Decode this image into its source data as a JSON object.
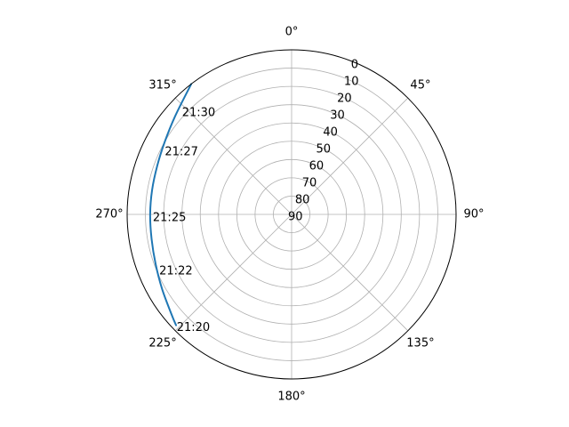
{
  "chart_data": {
    "type": "polar-line",
    "title": "",
    "theta_zero_location": "N",
    "theta_direction": "clockwise",
    "theta_ticks": [
      {
        "deg": 0,
        "label": "0°"
      },
      {
        "deg": 45,
        "label": "45°"
      },
      {
        "deg": 90,
        "label": "90°"
      },
      {
        "deg": 135,
        "label": "135°"
      },
      {
        "deg": 180,
        "label": "180°"
      },
      {
        "deg": 225,
        "label": "225°"
      },
      {
        "deg": 270,
        "label": "270°"
      },
      {
        "deg": 315,
        "label": "315°"
      }
    ],
    "r_axis": {
      "range": [
        90,
        0
      ],
      "inverted": true,
      "label_angle_deg": 22.5,
      "ticks": [
        {
          "value": 0,
          "label": "0"
        },
        {
          "value": 10,
          "label": "10"
        },
        {
          "value": 20,
          "label": "20"
        },
        {
          "value": 30,
          "label": "30"
        },
        {
          "value": 40,
          "label": "40"
        },
        {
          "value": 50,
          "label": "50"
        },
        {
          "value": 60,
          "label": "60"
        },
        {
          "value": 70,
          "label": "70"
        },
        {
          "value": 80,
          "label": "80"
        },
        {
          "value": 90,
          "label": "90"
        }
      ]
    },
    "grid": true,
    "series": [
      {
        "color": "#1f77b4",
        "points": [
          {
            "azimuth": 322.4,
            "elevation": 0
          },
          {
            "azimuth": 310,
            "elevation": 6.7
          },
          {
            "azimuth": 299.5,
            "elevation": 10.1
          },
          {
            "azimuth": 290,
            "elevation": 11.8
          },
          {
            "azimuth": 280,
            "elevation": 12.5
          },
          {
            "azimuth": 270,
            "elevation": 12.6
          },
          {
            "azimuth": 260,
            "elevation": 12.2
          },
          {
            "azimuth": 250,
            "elevation": 10.8
          },
          {
            "azimuth": 240,
            "elevation": 8.2
          },
          {
            "azimuth": 230,
            "elevation": 4.4
          },
          {
            "azimuth": 226.2,
            "elevation": 2.4
          }
        ]
      }
    ],
    "time_labels": [
      {
        "label": "21:30",
        "azimuth": 313.0,
        "elevation": 6.0
      },
      {
        "label": "21:27",
        "azimuth": 297.0,
        "elevation": 10.5
      },
      {
        "label": "21:25",
        "azimuth": 270.0,
        "elevation": 12.6
      },
      {
        "label": "21:22",
        "azimuth": 248.5,
        "elevation": 10.6
      },
      {
        "label": "21:20",
        "azimuth": 227.0,
        "elevation": 2.0
      }
    ]
  }
}
